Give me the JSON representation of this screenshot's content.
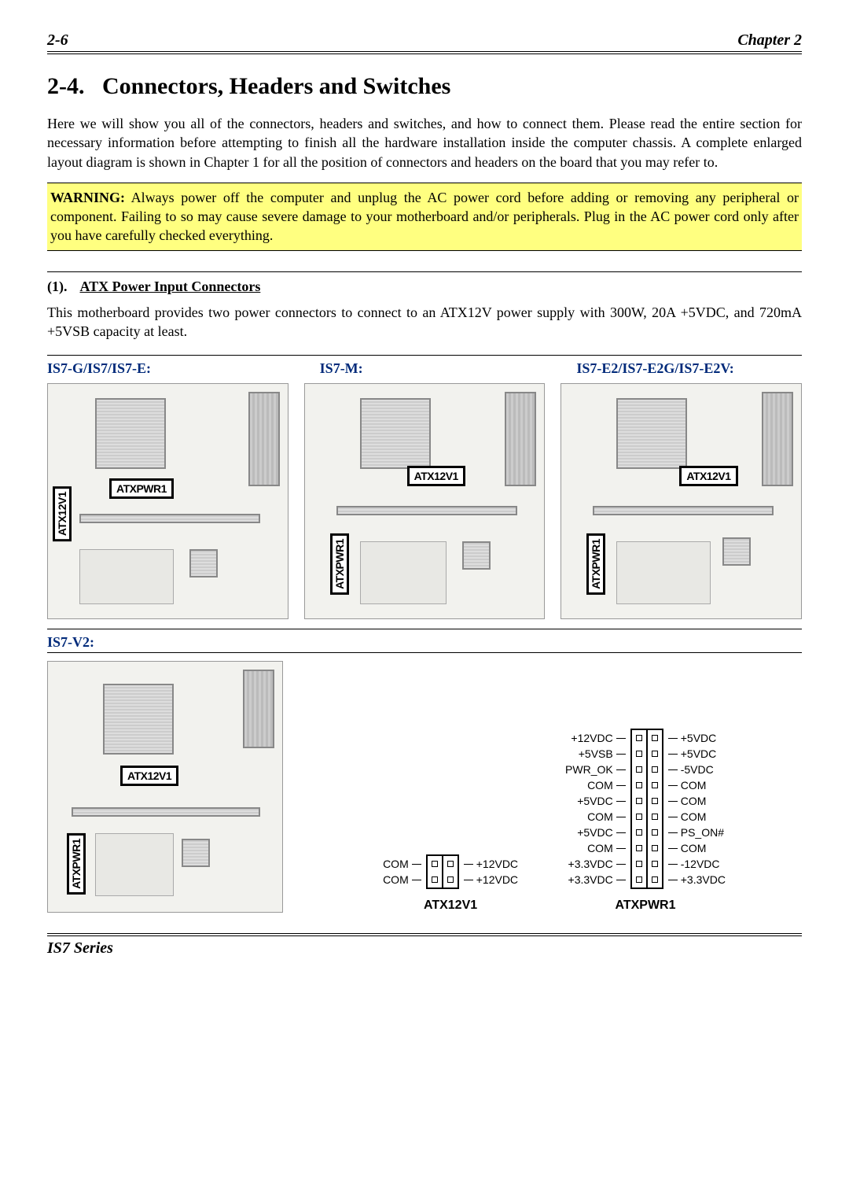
{
  "header": {
    "page_num": "2-6",
    "chapter": "Chapter 2"
  },
  "section": {
    "number": "2-4.",
    "title": "Connectors, Headers and Switches"
  },
  "intro": "Here we will show you all of the connectors, headers and switches, and how to connect them. Please read the entire section for necessary information before attempting to finish all the hardware installation inside the computer chassis. A complete enlarged layout diagram is shown in Chapter 1 for all the position of connectors and headers on the board that you may refer to.",
  "warning": {
    "label": "WARNING:",
    "text": " Always power off the computer and unplug the AC power cord before adding or removing any peripheral or component. Failing to so may cause severe damage to your motherboard and/or peripherals. Plug in the AC power cord only after you have carefully checked everything."
  },
  "sub": {
    "num": "(1).",
    "title": "ATX Power Input Connectors"
  },
  "sub_text": "This motherboard provides two power connectors to connect to an ATX12V power supply with 300W, 20A +5VDC, and 720mA +5VSB capacity at least.",
  "variants": {
    "a": "IS7-G/IS7/IS7-E:",
    "b": "IS7-M:",
    "c": "IS7-E2/IS7-E2G/IS7-E2V:"
  },
  "variant2": "IS7-V2:",
  "board_labels": {
    "hlabel_atxpwr": "ATXPWR1",
    "hlabel_atx12v": "ATX12V1",
    "vlabel_atx12v": "ATX12V1",
    "vlabel_atxpwr": "ATXPWR1"
  },
  "pinout_2x2": {
    "title": "ATX12V1",
    "left": [
      "COM",
      "COM"
    ],
    "right": [
      "+12VDC",
      "+12VDC"
    ]
  },
  "pinout_atxpwr": {
    "title": "ATXPWR1",
    "left": [
      "+12VDC",
      "+5VSB",
      "PWR_OK",
      "COM",
      "+5VDC",
      "COM",
      "+5VDC",
      "COM",
      "+3.3VDC",
      "+3.3VDC"
    ],
    "right": [
      "+5VDC",
      "+5VDC",
      "-5VDC",
      "COM",
      "COM",
      "COM",
      "PS_ON#",
      "COM",
      "-12VDC",
      "+3.3VDC"
    ]
  },
  "colors": {
    "brand_blue": "#002a7a",
    "warn_bg": "#ffff80"
  },
  "footer": "IS7 Series"
}
